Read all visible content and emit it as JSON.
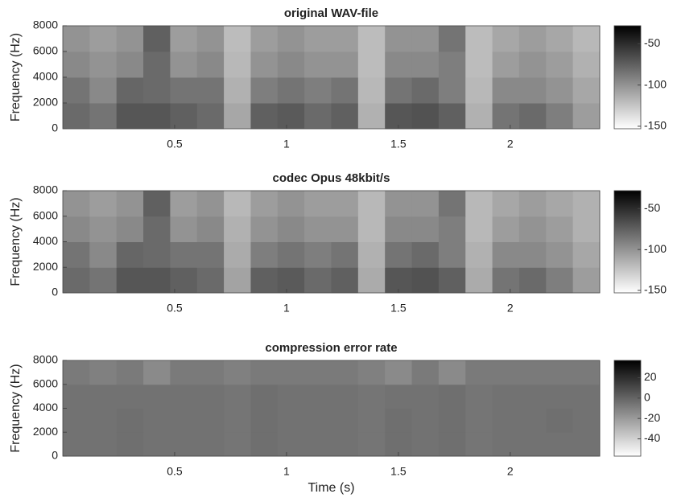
{
  "chart_data": [
    {
      "type": "spectrogram",
      "title": "original WAV-file",
      "y_label": "Frequency (Hz)",
      "xlim": [
        0,
        2.4
      ],
      "xticks": [
        0.5,
        1,
        1.5,
        2
      ],
      "ylim": [
        0,
        8000
      ],
      "yticks": [
        0,
        2000,
        4000,
        6000,
        8000
      ],
      "clim": [
        -153,
        -28
      ],
      "cticks": [
        -150,
        -100,
        -50
      ],
      "colormap": "gray-reversed",
      "time_bins": [
        0,
        0.12,
        0.24,
        0.36,
        0.48,
        0.6,
        0.72,
        0.84,
        0.96,
        1.08,
        1.2,
        1.32,
        1.44,
        1.56,
        1.68,
        1.8,
        1.92,
        2.04,
        2.16,
        2.28,
        2.4
      ],
      "freq_bins": [
        0,
        2000,
        4000,
        6000,
        8000
      ],
      "z": [
        [
          -80,
          -85,
          -70,
          -70,
          -75,
          -80,
          -110,
          -75,
          -72,
          -80,
          -75,
          -115,
          -70,
          -68,
          -75,
          -115,
          -85,
          -80,
          -90,
          -105
        ],
        [
          -85,
          -95,
          -78,
          -80,
          -85,
          -85,
          -115,
          -90,
          -85,
          -90,
          -85,
          -118,
          -85,
          -80,
          -90,
          -118,
          -95,
          -95,
          -100,
          -110
        ],
        [
          -95,
          -100,
          -95,
          -80,
          -100,
          -95,
          -118,
          -100,
          -95,
          -100,
          -100,
          -120,
          -95,
          -95,
          -90,
          -120,
          -105,
          -100,
          -105,
          -115
        ],
        [
          -100,
          -105,
          -100,
          -75,
          -105,
          -100,
          -120,
          -105,
          -100,
          -105,
          -105,
          -120,
          -100,
          -100,
          -85,
          -120,
          -110,
          -105,
          -110,
          -118
        ]
      ]
    },
    {
      "type": "spectrogram",
      "title": "codec Opus 48kbit/s",
      "y_label": "Frequency (Hz)",
      "xlim": [
        0,
        2.4
      ],
      "xticks": [
        0.5,
        1,
        1.5,
        2
      ],
      "ylim": [
        0,
        8000
      ],
      "yticks": [
        0,
        2000,
        4000,
        6000,
        8000
      ],
      "clim": [
        -153,
        -28
      ],
      "cticks": [
        -150,
        -100,
        -50
      ],
      "colormap": "gray-reversed",
      "time_bins": [
        0,
        0.12,
        0.24,
        0.36,
        0.48,
        0.6,
        0.72,
        0.84,
        0.96,
        1.08,
        1.2,
        1.32,
        1.44,
        1.56,
        1.68,
        1.8,
        1.92,
        2.04,
        2.16,
        2.28,
        2.4
      ],
      "freq_bins": [
        0,
        2000,
        4000,
        6000,
        8000
      ],
      "z": [
        [
          -80,
          -85,
          -70,
          -70,
          -75,
          -80,
          -108,
          -75,
          -72,
          -80,
          -75,
          -112,
          -70,
          -68,
          -75,
          -112,
          -85,
          -80,
          -90,
          -105
        ],
        [
          -85,
          -95,
          -78,
          -80,
          -85,
          -85,
          -112,
          -90,
          -85,
          -90,
          -85,
          -115,
          -85,
          -80,
          -90,
          -115,
          -95,
          -95,
          -100,
          -110
        ],
        [
          -95,
          -100,
          -95,
          -80,
          -100,
          -95,
          -115,
          -100,
          -95,
          -100,
          -100,
          -118,
          -95,
          -95,
          -90,
          -118,
          -105,
          -100,
          -105,
          -115
        ],
        [
          -100,
          -105,
          -100,
          -75,
          -105,
          -100,
          -118,
          -105,
          -100,
          -105,
          -105,
          -118,
          -100,
          -100,
          -85,
          -118,
          -110,
          -105,
          -110,
          -115
        ]
      ]
    },
    {
      "type": "spectrogram",
      "title": "compression error rate",
      "y_label": "Frequency (Hz)",
      "x_label": "Time (s)",
      "xlim": [
        0,
        2.4
      ],
      "xticks": [
        0.5,
        1,
        1.5,
        2
      ],
      "ylim": [
        0,
        8000
      ],
      "yticks": [
        0,
        2000,
        4000,
        6000,
        8000
      ],
      "clim": [
        -57,
        37
      ],
      "cticks": [
        -40,
        -20,
        0,
        20
      ],
      "colormap": "gray-reversed",
      "time_bins": [
        0,
        0.12,
        0.24,
        0.36,
        0.48,
        0.6,
        0.72,
        0.84,
        0.96,
        1.08,
        1.2,
        1.32,
        1.44,
        1.56,
        1.68,
        1.8,
        1.92,
        2.04,
        2.16,
        2.28,
        2.4
      ],
      "freq_bins": [
        0,
        2000,
        4000,
        6000,
        8000
      ],
      "z": [
        [
          -5,
          -5,
          -4,
          -5,
          -5,
          -5,
          -6,
          -4,
          -5,
          -5,
          -5,
          -6,
          -4,
          -5,
          -4,
          -6,
          -5,
          -5,
          -5,
          -5
        ],
        [
          -5,
          -5,
          -4,
          -5,
          -5,
          -5,
          -6,
          -4,
          -5,
          -5,
          -5,
          -6,
          -4,
          -5,
          -4,
          -6,
          -5,
          -5,
          -4,
          -5
        ],
        [
          -5,
          -5,
          -5,
          -5,
          -5,
          -5,
          -6,
          -4,
          -5,
          -5,
          -5,
          -6,
          -5,
          -5,
          -4,
          -6,
          -5,
          -5,
          -5,
          -5
        ],
        [
          -8,
          -10,
          -8,
          -14,
          -8,
          -8,
          -10,
          -8,
          -8,
          -8,
          -8,
          -10,
          -14,
          -8,
          -14,
          -8,
          -8,
          -8,
          -8,
          -8
        ]
      ]
    }
  ]
}
